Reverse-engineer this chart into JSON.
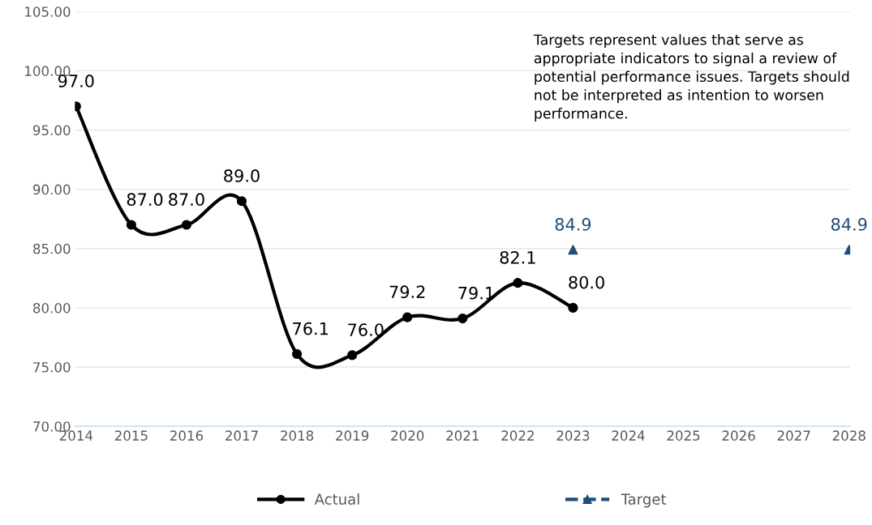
{
  "chart_data": {
    "type": "line",
    "categories": [
      "2014",
      "2015",
      "2016",
      "2017",
      "2018",
      "2019",
      "2020",
      "2021",
      "2022",
      "2023",
      "2024",
      "2025",
      "2026",
      "2027",
      "2028"
    ],
    "series": [
      {
        "name": "Actual",
        "color": "#000000",
        "marker": "circle",
        "line_style": "solid",
        "values": [
          97.0,
          87.0,
          87.0,
          89.0,
          76.1,
          76.0,
          79.2,
          79.1,
          82.1,
          80.0,
          null,
          null,
          null,
          null,
          null
        ],
        "value_labels": [
          "97.0",
          "87.0",
          "87.0",
          "89.0",
          "76.1",
          "76.0",
          "79.2",
          "79.1",
          "82.1",
          "80.0",
          null,
          null,
          null,
          null,
          null
        ]
      },
      {
        "name": "Target",
        "type": "scatter",
        "color": "#1f4e79",
        "marker": "triangle",
        "line_style": "dashed",
        "values": [
          null,
          null,
          null,
          null,
          null,
          null,
          null,
          null,
          null,
          84.9,
          null,
          null,
          null,
          null,
          84.9
        ],
        "value_labels": [
          null,
          null,
          null,
          null,
          null,
          null,
          null,
          null,
          null,
          "84.9",
          null,
          null,
          null,
          null,
          "84.9"
        ]
      }
    ],
    "ylim": [
      70,
      105
    ],
    "yticks": [
      {
        "value": 70,
        "label": "70.00"
      },
      {
        "value": 75,
        "label": "75.00"
      },
      {
        "value": 80,
        "label": "80.00"
      },
      {
        "value": 85,
        "label": "85.00"
      },
      {
        "value": 90,
        "label": "90.00"
      },
      {
        "value": 95,
        "label": "95.00"
      },
      {
        "value": 100,
        "label": "100.00"
      },
      {
        "value": 105,
        "label": "105.00"
      }
    ],
    "grid": "y",
    "legend": "bottom",
    "annotations": [
      "Targets represent values that serve as appropriate indicators to signal a review of potential performance issues. Targets should not be interpreted as intention to worsen performance."
    ]
  }
}
